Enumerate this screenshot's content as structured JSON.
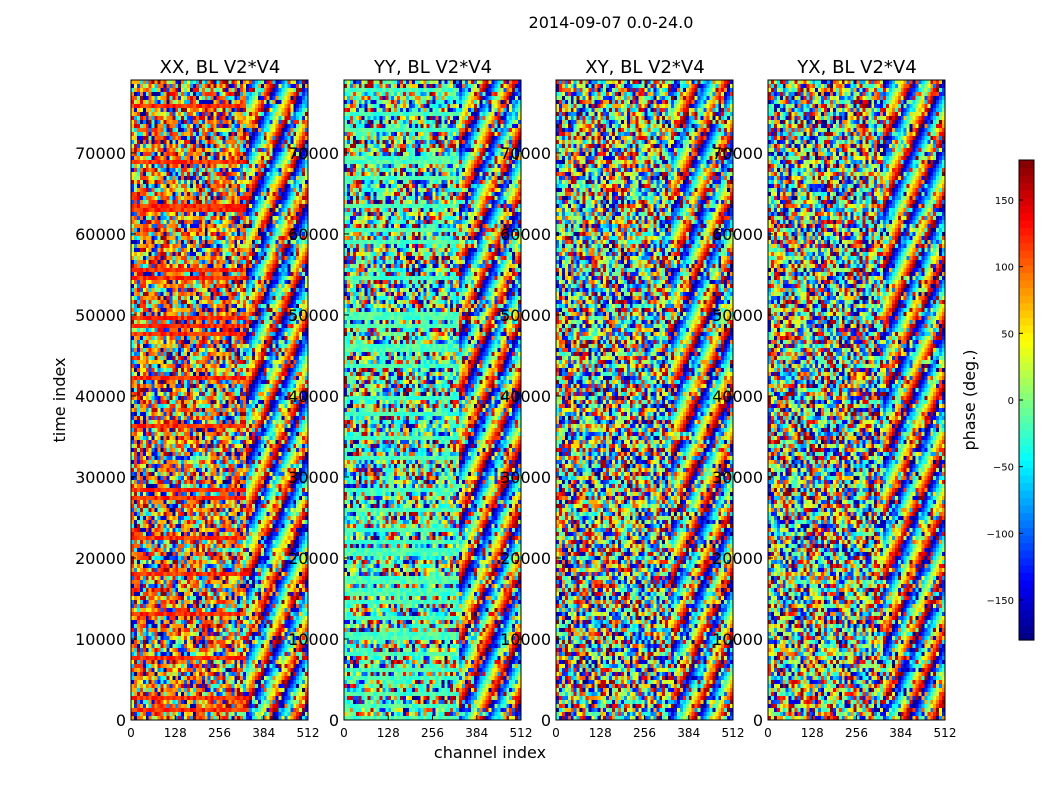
{
  "chart_data": {
    "type": "heatmap",
    "suptitle": "2014-09-07 0.0-24.0",
    "xlabel": "channel index",
    "ylabel": "time index",
    "xlim": [
      0,
      512
    ],
    "ylim": [
      0,
      79000
    ],
    "x_ticks": [
      0,
      128,
      256,
      384,
      512
    ],
    "y_ticks": [
      0,
      10000,
      20000,
      30000,
      40000,
      50000,
      60000,
      70000
    ],
    "panels": [
      {
        "title": "XX, BL V2*V4",
        "base_value": 95,
        "band_value": 120
      },
      {
        "title": "YY, BL V2*V4",
        "base_value": -20,
        "band_value": -20
      },
      {
        "title": "XY, BL V2*V4",
        "base_value": 0,
        "band_value": 0
      },
      {
        "title": "YX, BL V2*V4",
        "base_value": 0,
        "band_value": 0
      }
    ],
    "colorbar": {
      "label": "phase (deg.)",
      "range": [
        -180,
        180
      ],
      "ticks": [
        -150,
        -100,
        -50,
        0,
        50,
        100,
        150
      ],
      "colormap": "jet"
    }
  }
}
